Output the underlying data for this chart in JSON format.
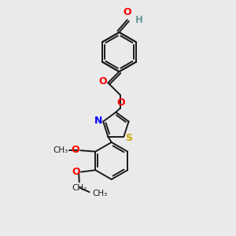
{
  "background_color": "#eaeaea",
  "bond_color": "#1a1a1a",
  "atom_colors": {
    "O": "#ff0000",
    "N": "#0000ff",
    "S": "#ccaa00",
    "C": "#1a1a1a",
    "H": "#6a9a9a"
  },
  "figsize": [
    3.0,
    3.0
  ],
  "dpi": 100,
  "xlim": [
    0,
    10
  ],
  "ylim": [
    0,
    10
  ]
}
